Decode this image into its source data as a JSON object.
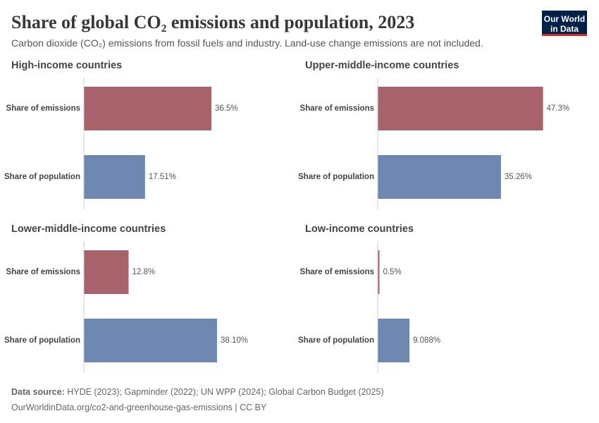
{
  "title": "Share of global CO₂ emissions and population, 2023",
  "subtitle": "Carbon dioxide (CO₂) emissions from fossil fuels and industry. Land-use change emissions are not included.",
  "source_label": "Data source:",
  "source": "HYDE (2023); Gapminder (2022); UN WPP (2024); Global Carbon Budget (2025)",
  "url": "OurWorldinData.org/co2-and-greenhouse-gas-emissions | CC BY",
  "logo": [
    "Our World",
    "in Data"
  ],
  "chart_data": [
    {
      "type": "bar",
      "orientation": "horizontal",
      "title": "High-income countries",
      "categories": [
        "Share of emissions",
        "Share of population"
      ],
      "values": [
        36.5,
        17.51
      ],
      "value_labels": [
        "36.5%",
        "17.51%"
      ],
      "colors": [
        "#a8636a",
        "#6d87b0"
      ],
      "xlim": [
        0,
        50
      ]
    },
    {
      "type": "bar",
      "orientation": "horizontal",
      "title": "Upper-middle-income countries",
      "categories": [
        "Share of emissions",
        "Share of population"
      ],
      "values": [
        47.3,
        35.26
      ],
      "value_labels": [
        "47.3%",
        "35.26%"
      ],
      "colors": [
        "#a8636a",
        "#6d87b0"
      ],
      "xlim": [
        0,
        50
      ]
    },
    {
      "type": "bar",
      "orientation": "horizontal",
      "title": "Lower-middle-income countries",
      "categories": [
        "Share of emissions",
        "Share of population"
      ],
      "values": [
        12.8,
        38.1
      ],
      "value_labels": [
        "12.8%",
        "38.10%"
      ],
      "colors": [
        "#a8636a",
        "#6d87b0"
      ],
      "xlim": [
        0,
        50
      ]
    },
    {
      "type": "bar",
      "orientation": "horizontal",
      "title": "Low-income countries",
      "categories": [
        "Share of emissions",
        "Share of population"
      ],
      "values": [
        0.5,
        9.088
      ],
      "value_labels": [
        "0.5%",
        "9.088%"
      ],
      "colors": [
        "#a8636a",
        "#6d87b0"
      ],
      "xlim": [
        0,
        50
      ]
    }
  ]
}
